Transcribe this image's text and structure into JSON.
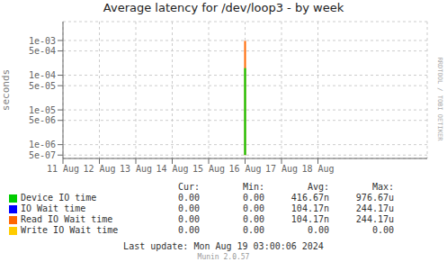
{
  "chart_data": {
    "type": "line",
    "title": "Average latency for /dev/loop3 - by week",
    "y_label": "seconds",
    "log": "y",
    "grid": true,
    "x": [
      1723672800,
      1723672800
    ],
    "series": [
      {
        "name": "Device IO time",
        "color": "#00cc00",
        "values": [
          5e-07,
          0.00016
        ]
      },
      {
        "name": "IO Wait time",
        "color": "#0000ff",
        "values": [
          null,
          null
        ]
      },
      {
        "name": "Read IO Wait time",
        "color": "#ff6600",
        "values": [
          5e-07,
          0.000976
        ]
      },
      {
        "name": "Write IO Wait time",
        "color": "#ffcc00",
        "values": [
          null,
          null
        ]
      }
    ],
    "xlim": [
      1723240800,
      1724104800
    ],
    "xticks": [
      {
        "value": 1723240800,
        "label": "11 Aug"
      },
      {
        "value": 1723327200,
        "label": "12 Aug"
      },
      {
        "value": 1723413600,
        "label": "13 Aug"
      },
      {
        "value": 1723500000,
        "label": "14 Aug"
      },
      {
        "value": 1723586400,
        "label": "15 Aug"
      },
      {
        "value": 1723672800,
        "label": "16 Aug"
      },
      {
        "value": 1723759200,
        "label": "17 Aug"
      },
      {
        "value": 1723845600,
        "label": "18 Aug"
      }
    ],
    "ylim": [
      4e-07,
      0.0035
    ],
    "yticks": [
      {
        "value": 5e-07,
        "label": "5e-07"
      },
      {
        "value": 1e-06,
        "label": "1e-06"
      },
      {
        "value": 5e-06,
        "label": "5e-06"
      },
      {
        "value": 1e-05,
        "label": "1e-05"
      },
      {
        "value": 5e-05,
        "label": "5e-05"
      },
      {
        "value": 0.0001,
        "label": "1e-04"
      },
      {
        "value": 0.0005,
        "label": "5e-04"
      },
      {
        "value": 0.001,
        "label": "1e-03"
      }
    ],
    "table": {
      "columns": [
        "Cur:",
        "Min:",
        "Avg:",
        "Max:"
      ],
      "rows": [
        [
          "0.00",
          "0.00",
          "416.67n",
          "976.67u"
        ],
        [
          "0.00",
          "0.00",
          "104.17n",
          "244.17u"
        ],
        [
          "0.00",
          "0.00",
          "104.17n",
          "244.17u"
        ],
        [
          "0.00",
          "0.00",
          "0.00",
          "0.00"
        ]
      ]
    },
    "annotations": [
      "Last update: Mon Aug 19 03:00:06 2024",
      "Munin 2.0.57",
      "RRDTOOL / TOBI OETIKER"
    ]
  }
}
